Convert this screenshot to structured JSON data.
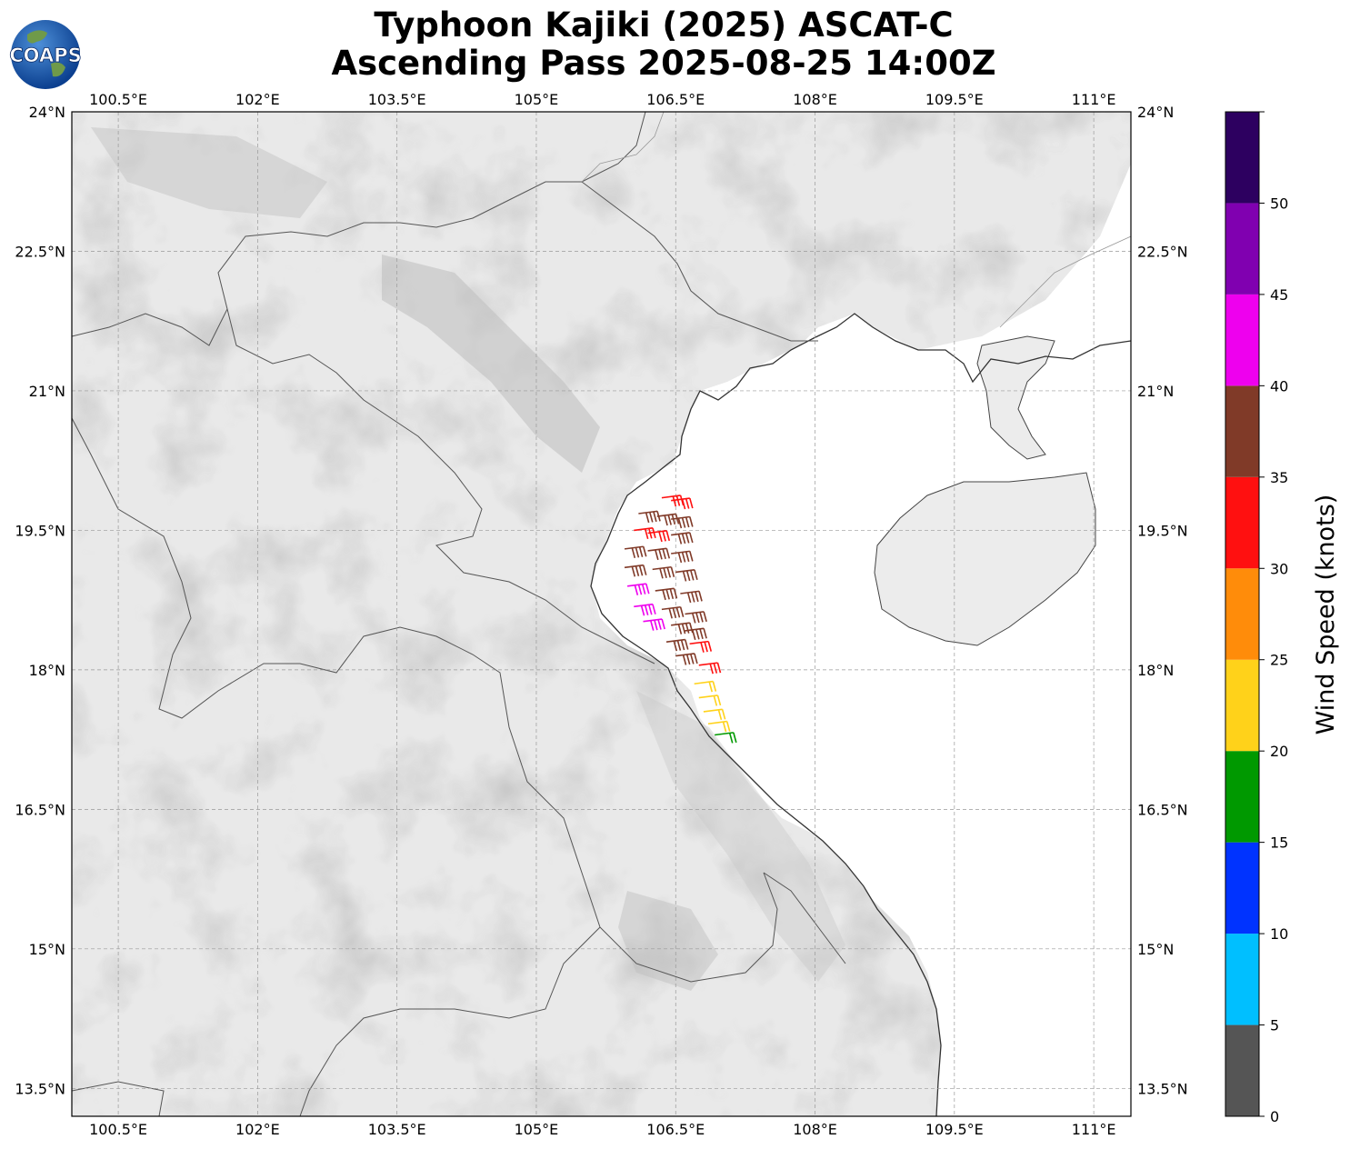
{
  "title_line1": "Typhoon Kajiki (2025) ASCAT-C",
  "title_line2": "Ascending Pass 2025-08-25 14:00Z",
  "logo_text": "COAPS",
  "lon_labels": [
    "100.5°E",
    "102°E",
    "103.5°E",
    "105°E",
    "106.5°E",
    "108°E",
    "109.5°E",
    "111°E"
  ],
  "lat_labels": [
    "24°N",
    "22.5°N",
    "21°N",
    "19.5°N",
    "18°N",
    "16.5°N",
    "15°N",
    "13.5°N"
  ],
  "colorbar": {
    "label": "Wind Speed (knots)",
    "tick_labels": [
      "0",
      "5",
      "10",
      "15",
      "20",
      "25",
      "30",
      "35",
      "40",
      "45",
      "50"
    ],
    "bins": [
      {
        "min": 0,
        "max": 5,
        "color": "#555555"
      },
      {
        "min": 5,
        "max": 10,
        "color": "#00bfff"
      },
      {
        "min": 10,
        "max": 15,
        "color": "#0033ff"
      },
      {
        "min": 15,
        "max": 20,
        "color": "#009900"
      },
      {
        "min": 20,
        "max": 25,
        "color": "#ffd21a"
      },
      {
        "min": 25,
        "max": 30,
        "color": "#ff8c0a"
      },
      {
        "min": 30,
        "max": 35,
        "color": "#ff1010"
      },
      {
        "min": 35,
        "max": 40,
        "color": "#803a28"
      },
      {
        "min": 40,
        "max": 45,
        "color": "#ee00ee"
      },
      {
        "min": 45,
        "max": 50,
        "color": "#8000b0"
      },
      {
        "min": 50,
        "max": 55,
        "color": "#2d0060"
      }
    ]
  },
  "map_extent": {
    "lon_min": 100.0,
    "lon_max": 111.4,
    "lat_min": 13.2,
    "lat_max": 24.0
  },
  "wind_barbs": [
    {
      "lon": 106.35,
      "lat": 19.85,
      "speed": 32
    },
    {
      "lon": 106.45,
      "lat": 19.82,
      "speed": 33
    },
    {
      "lon": 106.1,
      "lat": 19.68,
      "speed": 37
    },
    {
      "lon": 106.3,
      "lat": 19.65,
      "speed": 36
    },
    {
      "lon": 106.45,
      "lat": 19.62,
      "speed": 37
    },
    {
      "lon": 106.05,
      "lat": 19.5,
      "speed": 32
    },
    {
      "lon": 106.2,
      "lat": 19.47,
      "speed": 33
    },
    {
      "lon": 106.45,
      "lat": 19.45,
      "speed": 37
    },
    {
      "lon": 105.95,
      "lat": 19.3,
      "speed": 37
    },
    {
      "lon": 106.2,
      "lat": 19.28,
      "speed": 37
    },
    {
      "lon": 106.45,
      "lat": 19.25,
      "speed": 38
    },
    {
      "lon": 105.95,
      "lat": 19.1,
      "speed": 38
    },
    {
      "lon": 106.25,
      "lat": 19.08,
      "speed": 38
    },
    {
      "lon": 106.5,
      "lat": 19.05,
      "speed": 37
    },
    {
      "lon": 105.98,
      "lat": 18.9,
      "speed": 42
    },
    {
      "lon": 106.28,
      "lat": 18.85,
      "speed": 38
    },
    {
      "lon": 106.55,
      "lat": 18.82,
      "speed": 37
    },
    {
      "lon": 106.05,
      "lat": 18.68,
      "speed": 42
    },
    {
      "lon": 106.35,
      "lat": 18.65,
      "speed": 38
    },
    {
      "lon": 106.6,
      "lat": 18.6,
      "speed": 37
    },
    {
      "lon": 106.15,
      "lat": 18.52,
      "speed": 43
    },
    {
      "lon": 106.45,
      "lat": 18.48,
      "speed": 37
    },
    {
      "lon": 106.6,
      "lat": 18.42,
      "speed": 38
    },
    {
      "lon": 106.4,
      "lat": 18.3,
      "speed": 37
    },
    {
      "lon": 106.65,
      "lat": 18.28,
      "speed": 33
    },
    {
      "lon": 106.5,
      "lat": 18.15,
      "speed": 38
    },
    {
      "lon": 106.75,
      "lat": 18.05,
      "speed": 32
    },
    {
      "lon": 106.7,
      "lat": 17.85,
      "speed": 22
    },
    {
      "lon": 106.75,
      "lat": 17.7,
      "speed": 22
    },
    {
      "lon": 106.8,
      "lat": 17.55,
      "speed": 21
    },
    {
      "lon": 106.85,
      "lat": 17.42,
      "speed": 23
    },
    {
      "lon": 106.92,
      "lat": 17.3,
      "speed": 18
    }
  ]
}
